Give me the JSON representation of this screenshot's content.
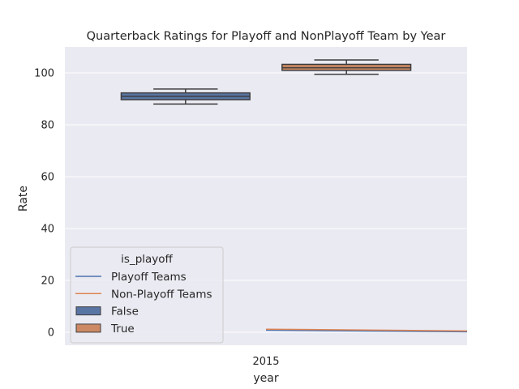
{
  "chart_data": {
    "type": "box",
    "title": "Quarterback Ratings for Playoff and NonPlayoff Team by Year",
    "xlabel": "year",
    "ylabel": "Rate",
    "categories": [
      "2015"
    ],
    "ylim": [
      -5,
      110
    ],
    "yticks": [
      0,
      20,
      40,
      60,
      80,
      100
    ],
    "grid": true,
    "legend": {
      "title": "is_playoff",
      "placement": "lower-left",
      "entries": [
        {
          "label": "Playoff Teams",
          "kind": "line",
          "color": "#4c72b0"
        },
        {
          "label": "Non-Playoff Teams",
          "kind": "line",
          "color": "#dd8452"
        },
        {
          "label": "False",
          "kind": "box",
          "color": "#5975a4"
        },
        {
          "label": "True",
          "kind": "box",
          "color": "#cc8963"
        }
      ]
    },
    "boxes": [
      {
        "category": "2015",
        "hue": "False",
        "color": "#5975a4",
        "whisker_low": 88,
        "q1": 89.7,
        "median": 91,
        "q3": 92.3,
        "whisker_high": 93.8
      },
      {
        "category": "2015",
        "hue": "True",
        "color": "#cc8963",
        "whisker_low": 99.5,
        "q1": 101,
        "median": 102,
        "q3": 103.3,
        "whisker_high": 105
      }
    ],
    "series": [
      {
        "name": "Playoff Teams",
        "color": "#4c72b0",
        "x": [
          0,
          1
        ],
        "values": [
          0.8,
          0.2
        ]
      },
      {
        "name": "Non-Playoff Teams",
        "color": "#dd8452",
        "x": [
          0,
          1
        ],
        "values": [
          1.2,
          0.5
        ]
      }
    ]
  }
}
